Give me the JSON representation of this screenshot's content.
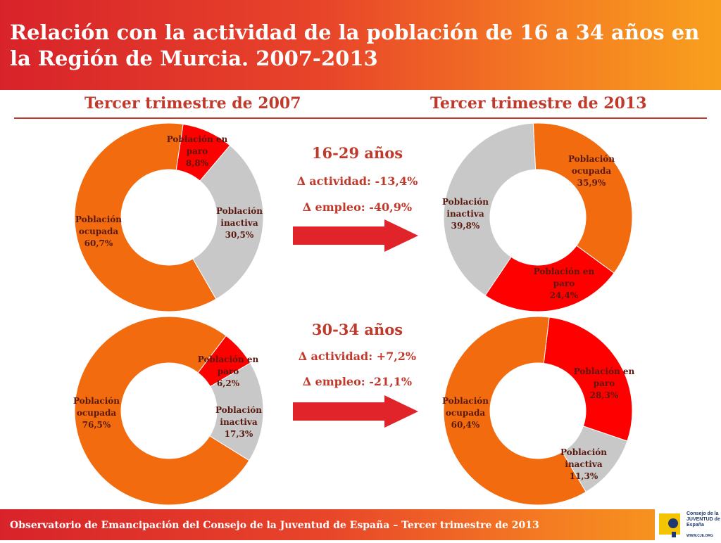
{
  "title": "Relación con la actividad de la población de 16 a 34 años en la Región de Murcia. 2007-2013",
  "columns": [
    "Tercer trimestre de 2007",
    "Tercer trimestre de 2013"
  ],
  "groups": [
    {
      "age": "16-29 años",
      "delta_activity": "∆ actividad: -13,4%",
      "delta_employment": "∆ empleo: -40,9%"
    },
    {
      "age": "30-34 años",
      "delta_activity": "∆ actividad: +7,2%",
      "delta_employment": "∆ empleo: -21,1%"
    }
  ],
  "colors": {
    "ocupada": "#f26b0f",
    "paro": "#ff0000",
    "inactiva": "#c8c8c8",
    "arrow": "#e0242a",
    "accent": "#c0392b"
  },
  "chart_data": [
    {
      "type": "pie",
      "title": "Tercer trimestre de 2007 16-29 años",
      "slices": [
        {
          "label": "Población en paro",
          "value": 8.8,
          "display": "8,8%"
        },
        {
          "label": "Población inactiva",
          "value": 30.5,
          "display": "30,5%"
        },
        {
          "label": "Población ocupada",
          "value": 60.7,
          "display": "60,7%"
        }
      ]
    },
    {
      "type": "pie",
      "title": "Tercer trimestre de 2013 16-29 años",
      "slices": [
        {
          "label": "Población ocupada",
          "value": 35.9,
          "display": "35,9%"
        },
        {
          "label": "Población en paro",
          "value": 24.4,
          "display": "24,4%"
        },
        {
          "label": "Población inactiva",
          "value": 39.8,
          "display": "39,8%"
        }
      ]
    },
    {
      "type": "pie",
      "title": "Tercer trimestre de 2007 30-34 años",
      "slices": [
        {
          "label": "Población en paro",
          "value": 6.2,
          "display": "6,2%"
        },
        {
          "label": "Población inactiva",
          "value": 17.3,
          "display": "17,3%"
        },
        {
          "label": "Población ocupada",
          "value": 76.5,
          "display": "76,5%"
        }
      ]
    },
    {
      "type": "pie",
      "title": "Tercer trimestre de 2013 30-34 años",
      "slices": [
        {
          "label": "Población en paro",
          "value": 28.3,
          "display": "28,3%"
        },
        {
          "label": "Población inactiva",
          "value": 11.3,
          "display": "11,3%"
        },
        {
          "label": "Población ocupada",
          "value": 60.4,
          "display": "60,4%"
        }
      ]
    }
  ],
  "footer": {
    "text": "Observatorio de Emancipación del Consejo de la Juventud de España – Tercer trimestre de 2013",
    "logo_text": "Consejo de la JUVENTUD de España",
    "logo_url": "WWW.CJE.ORG"
  }
}
